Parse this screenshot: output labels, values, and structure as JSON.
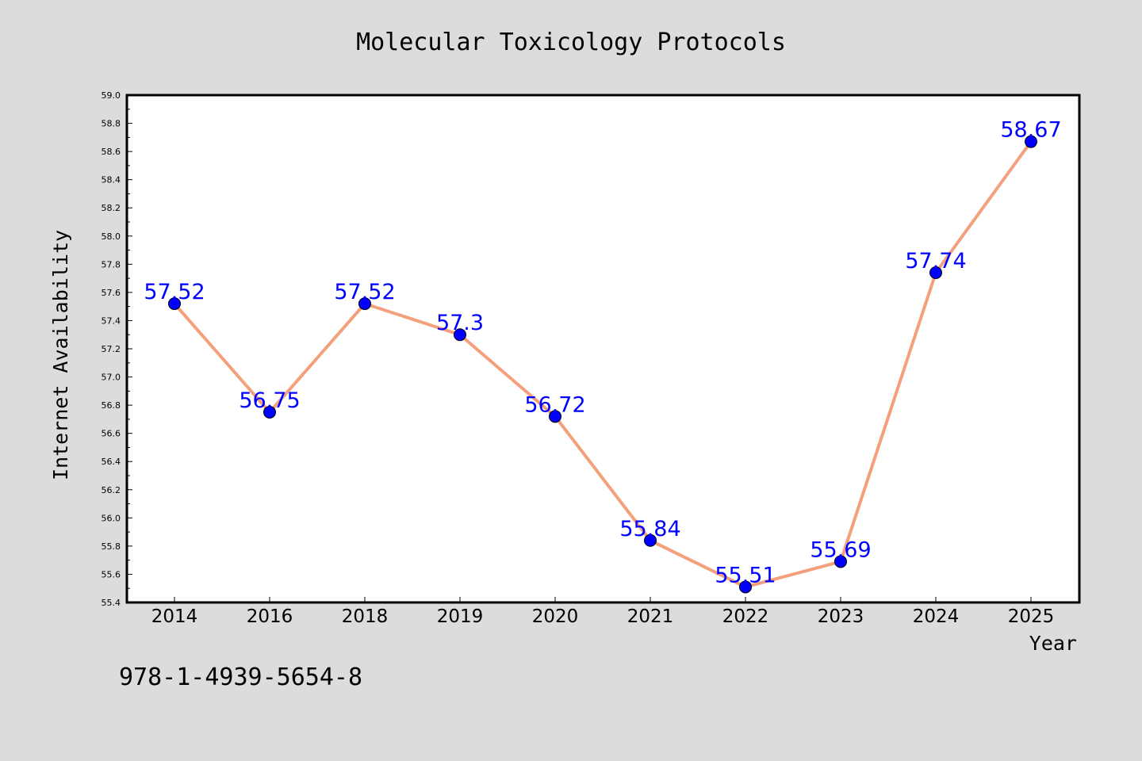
{
  "chart_data": {
    "type": "line",
    "title": "Molecular Toxicology Protocols",
    "xlabel": "Year",
    "ylabel": "Internet Availability",
    "categories": [
      "2014",
      "2016",
      "2018",
      "2019",
      "2020",
      "2021",
      "2022",
      "2023",
      "2024",
      "2025"
    ],
    "series": [
      {
        "values": [
          57.52,
          56.75,
          57.52,
          57.3,
          56.72,
          55.84,
          55.51,
          55.69,
          57.74,
          58.67
        ],
        "labels": [
          "57.52",
          "56.75",
          "57.52",
          "57.3",
          "56.72",
          "55.84",
          "55.51",
          "55.69",
          "57.74",
          "58.67"
        ],
        "line_color": "#f4a07c",
        "marker_color": "#0000ff"
      }
    ],
    "ylim": [
      55.4,
      59.0
    ],
    "y_ticks": [
      "55.4",
      "55.6",
      "55.8",
      "56.0",
      "56.2",
      "56.4",
      "56.6",
      "56.8",
      "57.0",
      "57.2",
      "57.4",
      "57.6",
      "57.8",
      "58.0",
      "58.2",
      "58.4",
      "58.6",
      "58.8",
      "59.0"
    ],
    "grid": false,
    "legend": "none",
    "annotation": "978-1-4939-5654-8"
  },
  "colors": {
    "figure_background": "#dcdcdc",
    "plot_background": "#ffffff",
    "data_label": "#0000ff"
  }
}
